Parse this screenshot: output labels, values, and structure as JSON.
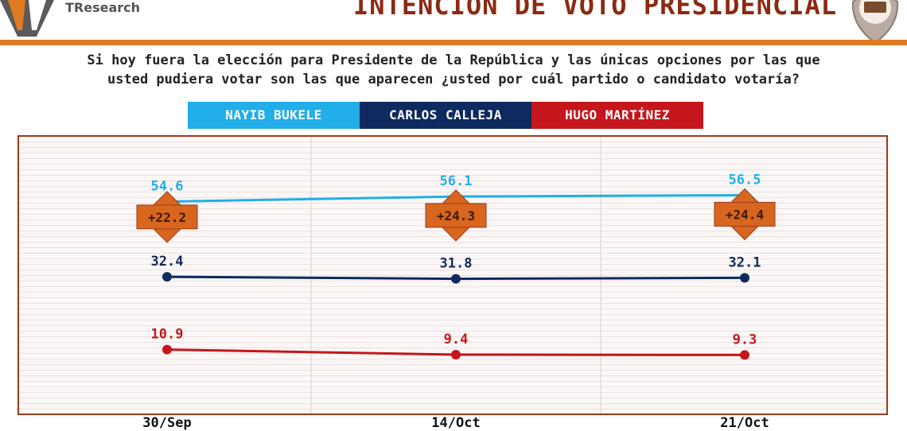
{
  "header": {
    "brand": "TResearch",
    "title": "INTENCIÓN DE VOTO PRESIDENCIAL"
  },
  "question": {
    "line1": "Si hoy fuera la elección para Presidente de la República y las únicas opciones por las que",
    "line2": "usted pudiera votar son las que aparecen ¿usted por cuál partido o candidato votaría?"
  },
  "colors": {
    "accent": "#E07B22",
    "title": "#8B2A12",
    "frame": "#9B3A1A",
    "diff_badge": "#D8661E"
  },
  "chart_data": {
    "type": "line",
    "categories": [
      "30/Sep",
      "14/Oct",
      "21/Oct"
    ],
    "series": [
      {
        "name": "NAYIB BUKELE",
        "color": "#22AEE8",
        "values": [
          54.6,
          56.1,
          56.5
        ]
      },
      {
        "name": "CARLOS CALLEJA",
        "color": "#0E2A5E",
        "values": [
          32.4,
          31.8,
          32.1
        ]
      },
      {
        "name": "HUGO MARTÍNEZ",
        "color": "#C4161C",
        "values": [
          10.9,
          9.4,
          9.3
        ]
      }
    ],
    "differences": [
      "+22.2",
      "+24.3",
      "+24.4"
    ],
    "ylim": [
      0,
      70
    ],
    "legend_position": "top-center",
    "grid": true
  }
}
